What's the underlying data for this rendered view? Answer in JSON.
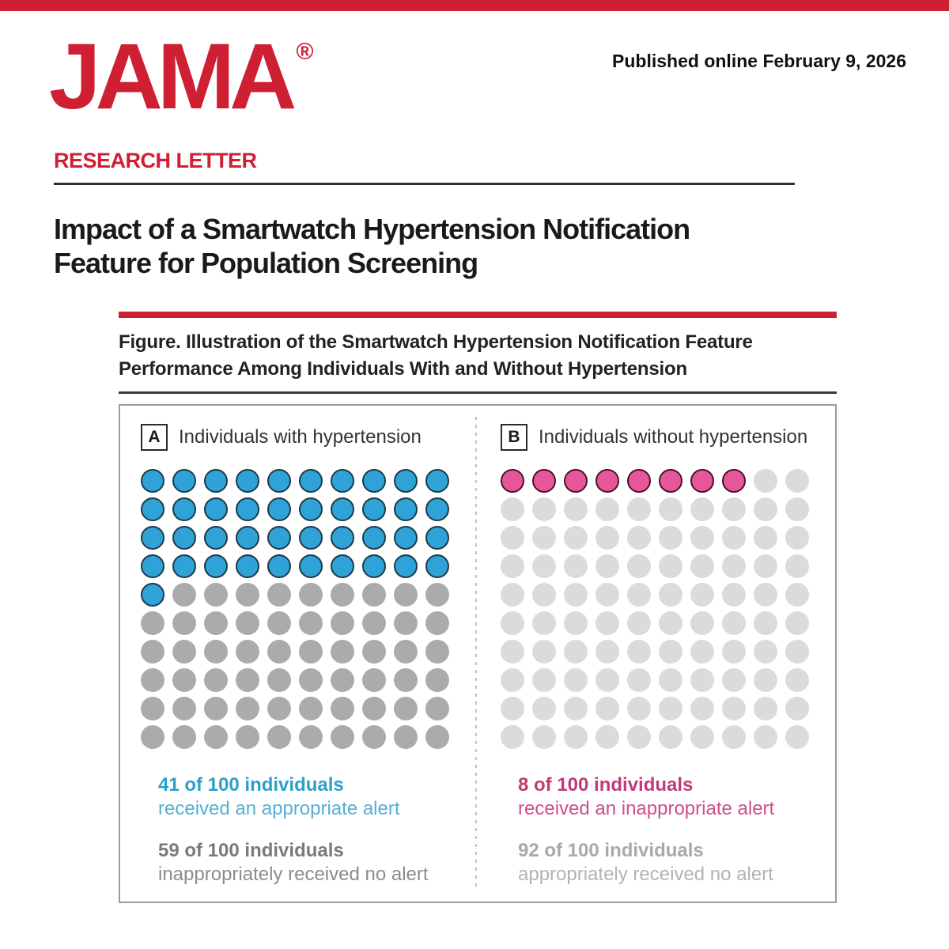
{
  "palette": {
    "jama_red": "#CE1F33",
    "title_dark": "#1A1A1A",
    "caption_dark": "#222222",
    "rule_dark": "#2E2E2E",
    "box_border": "#9B9B9B",
    "divider_gray": "#C2C2C2",
    "blue_fill": "#2FA3D7",
    "blue_stroke": "#1C3A4A",
    "gray_a_dot": "#ABABAB",
    "pink_fill": "#E65799",
    "pink_stroke": "#4A1129",
    "gray_b_dot": "#DBDBDB"
  },
  "masthead": {
    "logo": "JAMA",
    "registered_mark": "®",
    "published_online": "Published online February 9, 2026",
    "section_label": "RESEARCH LETTER"
  },
  "article": {
    "title_lines": [
      "Impact of a Smartwatch Hypertension Notification",
      "Feature for Population Screening"
    ]
  },
  "figure": {
    "caption_lines": [
      "Figure. Illustration of the Smartwatch Hypertension Notification Feature",
      "Performance Among Individuals With and Without Hypertension"
    ]
  },
  "chart_data": {
    "type": "pictogram",
    "title": "Illustration of the Smartwatch Hypertension Notification Feature Performance Among Individuals With and Without Hypertension",
    "layout": {
      "rows": 10,
      "cols": 10,
      "fill_order": "row-major",
      "stats_position": "below-grid"
    },
    "panels": [
      {
        "label": "A",
        "title": "Individuals with hypertension",
        "total": 100,
        "alerted": 41,
        "not_alerted": 59,
        "alert_fill": "#2FA3D7",
        "alert_stroke": "#1C3A4A",
        "no_alert_fill": "#ABABAB",
        "dot_alert_name": "appropriate-alert-dot",
        "dot_no_alert_name": "no-alert-dot",
        "stats": [
          {
            "headline": "41 of 100 individuals",
            "detail": "received an appropriate alert",
            "color_headline": "#2E9FC7",
            "color_detail": "#56AFD4"
          },
          {
            "headline": "59 of 100 individuals",
            "detail": "inappropriately received no alert",
            "color_headline": "#7A7A7A",
            "color_detail": "#8C8C8C"
          }
        ]
      },
      {
        "label": "B",
        "title": "Individuals without hypertension",
        "total": 100,
        "alerted": 8,
        "not_alerted": 92,
        "alert_fill": "#E65799",
        "alert_stroke": "#4A1129",
        "no_alert_fill": "#DBDBDB",
        "dot_alert_name": "inappropriate-alert-dot",
        "dot_no_alert_name": "no-alert-dot",
        "stats": [
          {
            "headline": "8 of 100 individuals",
            "detail": "received an inappropriate alert",
            "color_headline": "#C23A78",
            "color_detail": "#CE4E8C"
          },
          {
            "headline": "92 of 100 individuals",
            "detail": "appropriately received no alert",
            "color_headline": "#A9A9A9",
            "color_detail": "#B3B3B3"
          }
        ]
      }
    ]
  }
}
